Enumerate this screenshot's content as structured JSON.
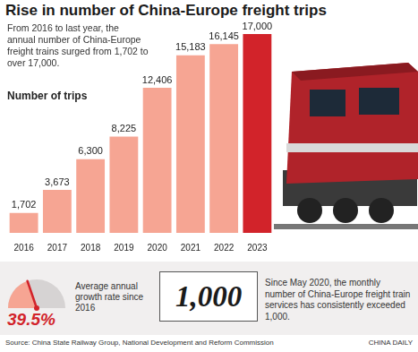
{
  "chart_data": {
    "type": "bar",
    "title": "Rise in number of China-Europe freight trips",
    "subtitle": "From 2016 to last year, the annual number of China-Europe freight trains surged from 1,702 to over 17,000.",
    "y_label": "Number of trips",
    "categories": [
      "2016",
      "2017",
      "2018",
      "2019",
      "2020",
      "2021",
      "2022",
      "2023"
    ],
    "values": [
      1702,
      3673,
      6300,
      8225,
      12406,
      15183,
      16145,
      17000
    ],
    "value_labels": [
      "1,702",
      "3,673",
      "6,300",
      "8,225",
      "12,406",
      "15,183",
      "16,145",
      "17,000"
    ],
    "colors": [
      "#f6a593",
      "#f6a593",
      "#f6a593",
      "#f6a593",
      "#f6a593",
      "#f6a593",
      "#f6a593",
      "#d2232a"
    ],
    "ylim": [
      0,
      17000
    ],
    "grid": false,
    "tick_labels": "x",
    "data_labels": true,
    "growth_rate": {
      "value": 39.5,
      "label": "39.5%",
      "range": [
        0,
        100
      ],
      "text": "Average annual growth rate since 2016"
    },
    "monthly": {
      "label": "1,000",
      "text": "Since May 2020, the monthly number of China-Europe freight train services has consistently exceeded 1,000."
    },
    "source": "Source: China State Railway Group, National Development and Reform Commission",
    "credit": "CHINA DAILY"
  }
}
